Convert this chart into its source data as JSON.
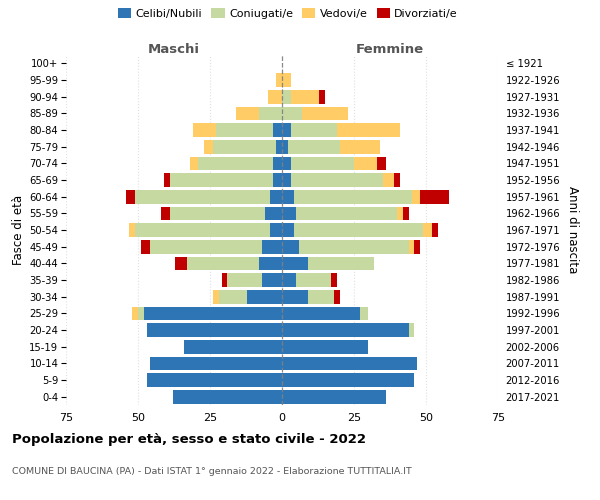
{
  "age_groups": [
    "0-4",
    "5-9",
    "10-14",
    "15-19",
    "20-24",
    "25-29",
    "30-34",
    "35-39",
    "40-44",
    "45-49",
    "50-54",
    "55-59",
    "60-64",
    "65-69",
    "70-74",
    "75-79",
    "80-84",
    "85-89",
    "90-94",
    "95-99",
    "100+"
  ],
  "birth_years": [
    "2017-2021",
    "2012-2016",
    "2007-2011",
    "2002-2006",
    "1997-2001",
    "1992-1996",
    "1987-1991",
    "1982-1986",
    "1977-1981",
    "1972-1976",
    "1967-1971",
    "1962-1966",
    "1957-1961",
    "1952-1956",
    "1947-1951",
    "1942-1946",
    "1937-1941",
    "1932-1936",
    "1927-1931",
    "1922-1926",
    "≤ 1921"
  ],
  "colors": {
    "celibi": "#2E75B6",
    "coniugati": "#C5D9A0",
    "vedovi": "#FFCC66",
    "divorziati": "#C00000"
  },
  "maschi": {
    "celibi": [
      38,
      47,
      46,
      34,
      47,
      48,
      12,
      7,
      8,
      7,
      4,
      6,
      4,
      3,
      3,
      2,
      3,
      0,
      0,
      0,
      0
    ],
    "coniugati": [
      0,
      0,
      0,
      0,
      0,
      2,
      10,
      12,
      25,
      39,
      47,
      33,
      47,
      36,
      26,
      22,
      20,
      8,
      0,
      0,
      0
    ],
    "vedovi": [
      0,
      0,
      0,
      0,
      0,
      2,
      2,
      0,
      0,
      0,
      2,
      0,
      0,
      0,
      3,
      3,
      8,
      8,
      5,
      2,
      0
    ],
    "divorziati": [
      0,
      0,
      0,
      0,
      0,
      0,
      0,
      2,
      4,
      3,
      0,
      3,
      3,
      2,
      0,
      0,
      0,
      0,
      0,
      0,
      0
    ]
  },
  "femmine": {
    "nubili": [
      36,
      46,
      47,
      30,
      44,
      27,
      9,
      5,
      9,
      6,
      4,
      5,
      4,
      3,
      3,
      2,
      3,
      0,
      0,
      0,
      0
    ],
    "coniugate": [
      0,
      0,
      0,
      0,
      2,
      3,
      9,
      12,
      23,
      38,
      45,
      35,
      41,
      32,
      22,
      18,
      16,
      7,
      3,
      0,
      0
    ],
    "vedove": [
      0,
      0,
      0,
      0,
      0,
      0,
      0,
      0,
      0,
      2,
      3,
      2,
      3,
      4,
      8,
      14,
      22,
      16,
      10,
      3,
      0
    ],
    "divorziate": [
      0,
      0,
      0,
      0,
      0,
      0,
      2,
      2,
      0,
      2,
      2,
      2,
      10,
      2,
      3,
      0,
      0,
      0,
      2,
      0,
      0
    ]
  },
  "xlim": 75,
  "title": "Popolazione per età, sesso e stato civile - 2022",
  "subtitle": "COMUNE DI BAUCINA (PA) - Dati ISTAT 1° gennaio 2022 - Elaborazione TUTTITALIA.IT",
  "ylabel_left": "Fasce di età",
  "ylabel_right": "Anni di nascita",
  "xlabel_maschi": "Maschi",
  "xlabel_femmine": "Femmine",
  "legend_labels": [
    "Celibi/Nubili",
    "Coniugati/e",
    "Vedovi/e",
    "Divorziati/e"
  ],
  "xticks": [
    -75,
    -50,
    -25,
    0,
    25,
    50,
    75
  ],
  "xticklabels": [
    "75",
    "50",
    "25",
    "0",
    "25",
    "50",
    "75"
  ]
}
